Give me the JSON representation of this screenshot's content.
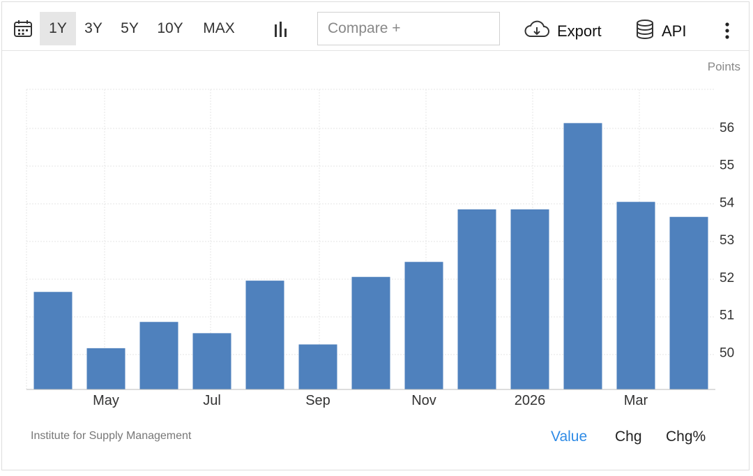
{
  "toolbar": {
    "ranges": [
      "1Y",
      "3Y",
      "5Y",
      "10Y",
      "MAX"
    ],
    "active_range": "1Y",
    "compare_placeholder": "Compare +",
    "export_label": "Export",
    "api_label": "API"
  },
  "unit_label": "Points",
  "source": "Institute for Supply Management",
  "view_tabs": [
    "Value",
    "Chg",
    "Chg%"
  ],
  "active_view": "Value",
  "colors": {
    "bar": "#4f81bd",
    "active_tab": "#2f8be6",
    "grid": "#e6e6e6"
  },
  "chart_data": {
    "type": "bar",
    "x_tick_labels": [
      "May",
      "Jul",
      "Sep",
      "Nov",
      "2026",
      "Mar"
    ],
    "values": [
      51.6,
      50.1,
      50.8,
      50.5,
      51.9,
      50.2,
      52.0,
      52.4,
      53.8,
      53.8,
      56.1,
      54.0,
      53.6
    ],
    "y_ticks": [
      50,
      51,
      52,
      53,
      54,
      55,
      56
    ],
    "ylim": [
      49,
      57
    ],
    "ylabel": "Points",
    "grid": true
  }
}
